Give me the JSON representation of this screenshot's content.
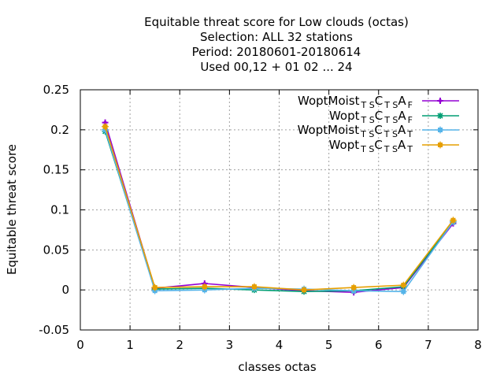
{
  "chart_data": {
    "type": "line",
    "title_lines": [
      "Equitable threat score  for Low clouds (octas)",
      "Selection: ALL     32 stations",
      "Period: 20180601-20180614",
      "Used  00,12  + 01 02 ... 24"
    ],
    "xlabel": "classes octas",
    "ylabel": "Equitable threat score",
    "xlim": [
      0,
      8
    ],
    "ylim": [
      -0.05,
      0.25
    ],
    "xticks": [
      0,
      1,
      2,
      3,
      4,
      5,
      6,
      7,
      8
    ],
    "yticks": [
      -0.05,
      0,
      0.05,
      0.1,
      0.15,
      0.2,
      0.25
    ],
    "ytick_labels": [
      "-0.05",
      "0",
      "0.05",
      "0.1",
      "0.15",
      "0.2",
      "0.25"
    ],
    "grid": true,
    "legend_position": "top-right",
    "x": [
      0.5,
      1.5,
      2.5,
      3.5,
      4.5,
      5.5,
      6.5,
      7.5
    ],
    "series": [
      {
        "legend": {
          "base": "WoptMoist",
          "s1": "T S",
          "c": "C",
          "s2": "T S",
          "a": "A",
          "s3": "F"
        },
        "color": "#9400d3",
        "marker": "plus",
        "values": [
          0.209,
          0.002,
          0.008,
          0.003,
          -0.001,
          -0.003,
          0.003,
          0.083
        ]
      },
      {
        "legend": {
          "base": "Wopt",
          "s1": "T S",
          "c": "C",
          "s2": "T S",
          "a": "A",
          "s3": "F"
        },
        "color": "#009e73",
        "marker": "star",
        "values": [
          0.198,
          0.001,
          0.002,
          0.0,
          -0.002,
          -0.001,
          0.004,
          0.085
        ]
      },
      {
        "legend": {
          "base": "WoptMoist",
          "s1": "T S",
          "c": "C",
          "s2": "T S",
          "a": "A",
          "s3": "T"
        },
        "color": "#56b4e9",
        "marker": "box",
        "values": [
          0.2,
          -0.001,
          0.0,
          0.002,
          0.001,
          -0.001,
          -0.002,
          0.085
        ]
      },
      {
        "legend": {
          "base": "Wopt",
          "s1": "T S",
          "c": "C",
          "s2": "T S",
          "a": "A",
          "s3": "T"
        },
        "color": "#e69f00",
        "marker": "box",
        "values": [
          0.204,
          0.003,
          0.004,
          0.004,
          0.0,
          0.003,
          0.006,
          0.087
        ]
      }
    ]
  }
}
